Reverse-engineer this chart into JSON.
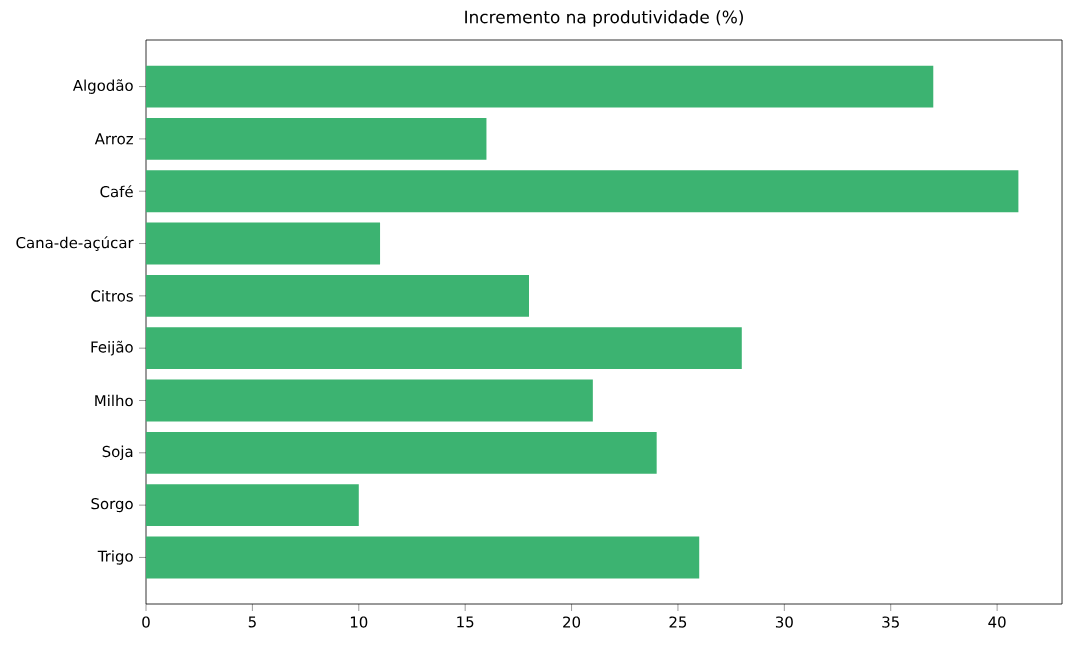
{
  "chart_data": {
    "type": "bar",
    "orientation": "horizontal",
    "title": "Incremento na produtividade (%)",
    "categories": [
      "Algodão",
      "Arroz",
      "Café",
      "Cana-de-açúcar",
      "Citros",
      "Feijão",
      "Milho",
      "Soja",
      "Sorgo",
      "Trigo"
    ],
    "values": [
      37,
      16,
      41,
      11,
      18,
      28,
      21,
      24,
      10,
      26
    ],
    "color": "#3cb371",
    "xlim": [
      0,
      43.05
    ],
    "xticks": [
      0,
      5,
      10,
      15,
      20,
      25,
      30,
      35,
      40
    ]
  }
}
